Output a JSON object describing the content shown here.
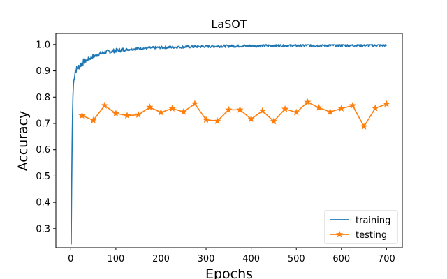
{
  "chart_data": {
    "type": "line",
    "title": "LaSOT",
    "xlabel": "Epochs",
    "ylabel": "Accuracy",
    "xlim": [
      -33,
      735
    ],
    "ylim": [
      0.228,
      1.042
    ],
    "xticks": [
      0,
      100,
      200,
      300,
      400,
      500,
      600,
      700
    ],
    "yticks": [
      0.3,
      0.4,
      0.5,
      0.6,
      0.7,
      0.8,
      0.9,
      1.0
    ],
    "xtick_labels": [
      "0",
      "100",
      "200",
      "300",
      "400",
      "500",
      "600",
      "700"
    ],
    "ytick_labels": [
      "0.3",
      "0.4",
      "0.5",
      "0.6",
      "0.7",
      "0.8",
      "0.9",
      "1.0"
    ],
    "grid": false,
    "legend_position": "bottom-right",
    "colors": {
      "training": "#1f77b4",
      "testing": "#ff7f0e"
    },
    "series": [
      {
        "name": "training",
        "marker": "none",
        "curve": {
          "x": [
            1,
            2,
            3,
            4,
            5,
            6,
            8,
            10,
            12,
            15,
            20,
            25,
            30,
            40,
            50,
            60,
            70,
            80,
            100,
            120,
            150,
            200,
            250,
            300,
            350,
            400,
            450,
            500,
            550,
            600,
            650,
            700
          ],
          "y": [
            0.24,
            0.45,
            0.62,
            0.74,
            0.81,
            0.85,
            0.88,
            0.9,
            0.905,
            0.91,
            0.92,
            0.93,
            0.935,
            0.945,
            0.955,
            0.962,
            0.968,
            0.972,
            0.977,
            0.981,
            0.985,
            0.989,
            0.991,
            0.993,
            0.994,
            0.995,
            0.996,
            0.996,
            0.997,
            0.997,
            0.997,
            0.997
          ]
        },
        "noise_amplitude": 0.005
      },
      {
        "name": "testing",
        "marker": "star",
        "x": [
          25,
          50,
          75,
          100,
          125,
          150,
          175,
          200,
          225,
          250,
          275,
          300,
          325,
          350,
          375,
          400,
          425,
          450,
          475,
          500,
          525,
          550,
          575,
          600,
          625,
          650,
          675,
          700
        ],
        "y": [
          0.73,
          0.712,
          0.768,
          0.738,
          0.73,
          0.733,
          0.762,
          0.742,
          0.757,
          0.744,
          0.775,
          0.714,
          0.709,
          0.752,
          0.752,
          0.717,
          0.748,
          0.708,
          0.755,
          0.742,
          0.781,
          0.76,
          0.744,
          0.757,
          0.768,
          0.688,
          0.758,
          0.774
        ]
      }
    ]
  }
}
